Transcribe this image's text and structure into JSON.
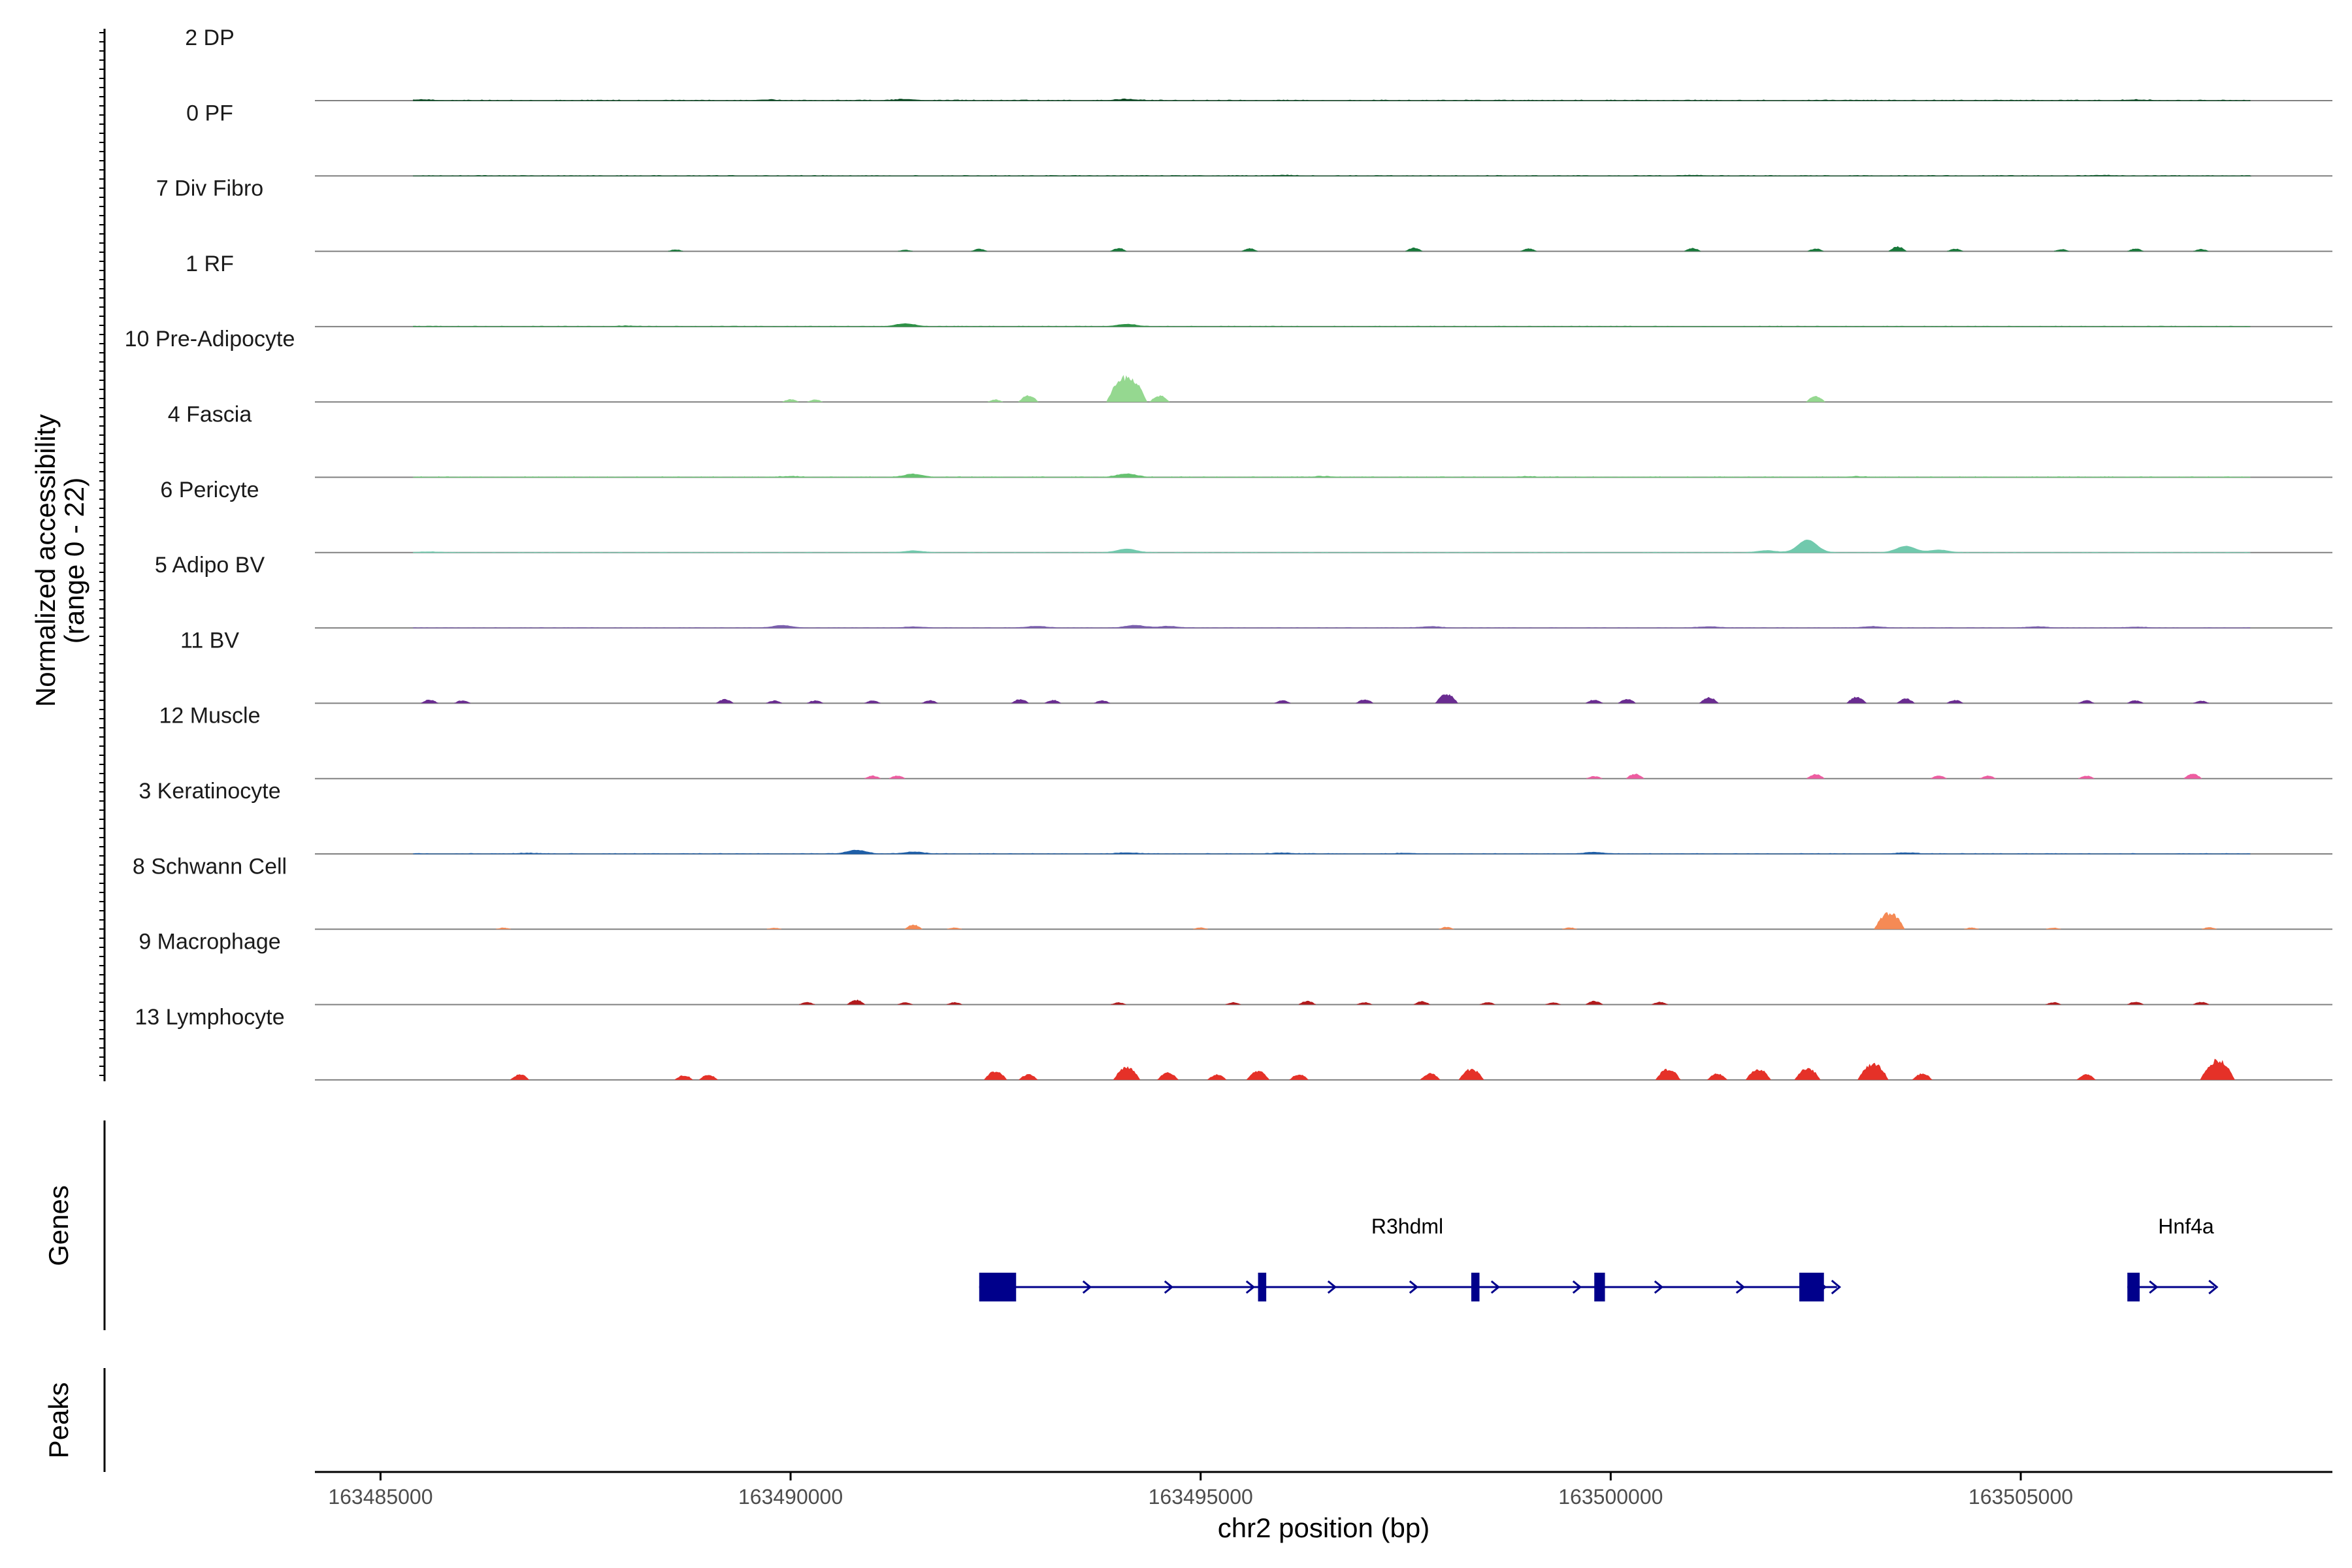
{
  "chart_data": {
    "type": "area",
    "chromosome": "chr2",
    "xlabel": "chr2 position (bp)",
    "xlim": [
      163484200,
      163508800
    ],
    "xticks": [
      163485000,
      163490000,
      163495000,
      163500000,
      163505000
    ],
    "tick_labels": [
      "163485000",
      "163490000",
      "163495000",
      "163500000",
      "163505000"
    ],
    "ylabel_line1": "Normalized accessibility",
    "ylabel_line2": "(range 0 - 22)",
    "ylim": [
      0,
      22
    ],
    "tracks": [
      {
        "name": "2 DP",
        "color": "#00441b",
        "style": "dense",
        "base": 0.35,
        "peaks": [
          [
            163491400,
            0.9
          ],
          [
            163494100,
            0.9
          ],
          [
            163485500,
            0.6
          ],
          [
            163489700,
            0.5
          ],
          [
            163506400,
            0.5
          ]
        ]
      },
      {
        "name": "0 PF",
        "color": "#0c5a2a",
        "style": "dense",
        "base": 0.3,
        "peaks": [
          [
            163496000,
            0.4
          ],
          [
            163501000,
            0.4
          ],
          [
            163506000,
            0.4
          ]
        ]
      },
      {
        "name": "7 Div Fibro",
        "color": "#17793a",
        "style": "sparse",
        "peaks": [
          [
            163488600,
            1.0
          ],
          [
            163491400,
            0.8
          ],
          [
            163492300,
            1.4
          ],
          [
            163494000,
            1.8
          ],
          [
            163495600,
            1.6
          ],
          [
            163497600,
            2.0
          ],
          [
            163499000,
            1.6
          ],
          [
            163501000,
            1.8
          ],
          [
            163502500,
            1.5
          ],
          [
            163503500,
            2.6
          ],
          [
            163504200,
            1.5
          ],
          [
            163505500,
            1.2
          ],
          [
            163506400,
            1.5
          ],
          [
            163507200,
            1.2
          ]
        ]
      },
      {
        "name": "1 RF",
        "color": "#2e9146",
        "style": "dense",
        "base": 0.25,
        "peaks": [
          [
            163491400,
            2.2
          ],
          [
            163494100,
            1.8
          ],
          [
            163488000,
            0.4
          ]
        ]
      },
      {
        "name": "10 Pre-Adipocyte",
        "color": "#95d890",
        "style": "sparse",
        "peaks": [
          [
            163490000,
            1.5
          ],
          [
            163490300,
            1.3
          ],
          [
            163492500,
            1.3
          ],
          [
            163492900,
            3.5
          ],
          [
            163494100,
            14.0
          ],
          [
            163494500,
            3.5
          ],
          [
            163502500,
            3.0
          ]
        ]
      },
      {
        "name": "4 Fascia",
        "color": "#66c170",
        "style": "dense",
        "base": 0.3,
        "peaks": [
          [
            163491500,
            2.3
          ],
          [
            163494100,
            2.6
          ],
          [
            163490000,
            0.5
          ],
          [
            163496500,
            0.5
          ],
          [
            163499000,
            0.4
          ],
          [
            163503000,
            0.4
          ]
        ]
      },
      {
        "name": "6 Pericyte",
        "color": "#71c9ad",
        "style": "dense",
        "base": 0.15,
        "peaks": [
          [
            163485600,
            0.5
          ],
          [
            163491500,
            1.3
          ],
          [
            163494100,
            2.8
          ],
          [
            163502400,
            10.0
          ],
          [
            163501900,
            1.5
          ],
          [
            163503600,
            5.0
          ],
          [
            163504000,
            2.0
          ]
        ]
      },
      {
        "name": "5 Adipo BV",
        "color": "#7a5fad",
        "style": "dense",
        "base": 0.2,
        "peaks": [
          [
            163489900,
            1.8
          ],
          [
            163491500,
            0.8
          ],
          [
            163493000,
            1.2
          ],
          [
            163494200,
            2.0
          ],
          [
            163494600,
            1.2
          ],
          [
            163497800,
            1.0
          ],
          [
            163501200,
            0.9
          ],
          [
            163503200,
            1.0
          ],
          [
            163505200,
            0.9
          ],
          [
            163506400,
            0.6
          ]
        ]
      },
      {
        "name": "11 BV",
        "color": "#6a2c91",
        "style": "sparse",
        "peaks": [
          [
            163485600,
            2.0
          ],
          [
            163486000,
            1.6
          ],
          [
            163489200,
            2.2
          ],
          [
            163489800,
            1.5
          ],
          [
            163490300,
            1.6
          ],
          [
            163491000,
            1.5
          ],
          [
            163491700,
            1.7
          ],
          [
            163492800,
            2.3
          ],
          [
            163493200,
            1.8
          ],
          [
            163493800,
            1.6
          ],
          [
            163496000,
            1.6
          ],
          [
            163497000,
            2.2
          ],
          [
            163498000,
            5.0
          ],
          [
            163499800,
            2.0
          ],
          [
            163500200,
            2.4
          ],
          [
            163501200,
            3.2
          ],
          [
            163503000,
            3.5
          ],
          [
            163503600,
            2.5
          ],
          [
            163504200,
            1.8
          ],
          [
            163505800,
            1.6
          ],
          [
            163506400,
            1.7
          ],
          [
            163507200,
            1.4
          ]
        ]
      },
      {
        "name": "12 Muscle",
        "color": "#ee5da1",
        "style": "sparse",
        "peaks": [
          [
            163491000,
            1.6
          ],
          [
            163491300,
            1.6
          ],
          [
            163499800,
            1.4
          ],
          [
            163500300,
            2.6
          ],
          [
            163502500,
            2.5
          ],
          [
            163504000,
            1.6
          ],
          [
            163504600,
            1.6
          ],
          [
            163505800,
            1.6
          ],
          [
            163507100,
            2.6
          ]
        ]
      },
      {
        "name": "3 Keratinocyte",
        "color": "#1f5fa8",
        "style": "dense",
        "base": 0.25,
        "peaks": [
          [
            163490800,
            2.8
          ],
          [
            163491500,
            1.4
          ],
          [
            163494100,
            0.8
          ],
          [
            163496000,
            0.6
          ],
          [
            163497500,
            0.5
          ],
          [
            163499800,
            1.1
          ],
          [
            163503600,
            0.8
          ],
          [
            163486800,
            0.5
          ]
        ]
      },
      {
        "name": "8 Schwann Cell",
        "color": "#f58a55",
        "style": "sparse",
        "peaks": [
          [
            163486500,
            0.9
          ],
          [
            163489800,
            0.8
          ],
          [
            163491500,
            2.5
          ],
          [
            163492000,
            1.0
          ],
          [
            163495000,
            1.0
          ],
          [
            163498000,
            1.3
          ],
          [
            163499500,
            1.0
          ],
          [
            163503400,
            9.0
          ],
          [
            163504400,
            0.9
          ],
          [
            163505400,
            0.9
          ],
          [
            163507300,
            1.1
          ]
        ]
      },
      {
        "name": "9 Macrophage",
        "color": "#b21a1c",
        "style": "sparse",
        "peaks": [
          [
            163490200,
            1.4
          ],
          [
            163490800,
            2.6
          ],
          [
            163491400,
            1.2
          ],
          [
            163492000,
            1.3
          ],
          [
            163494000,
            1.2
          ],
          [
            163495400,
            1.3
          ],
          [
            163496300,
            2.0
          ],
          [
            163497000,
            1.3
          ],
          [
            163497700,
            1.8
          ],
          [
            163498500,
            1.3
          ],
          [
            163499300,
            1.2
          ],
          [
            163499800,
            2.0
          ],
          [
            163500600,
            1.5
          ],
          [
            163505400,
            1.3
          ],
          [
            163506400,
            1.6
          ],
          [
            163507200,
            1.5
          ]
        ]
      },
      {
        "name": "13 Lymphocyte",
        "color": "#e53128",
        "style": "sparse",
        "peaks": [
          [
            163486700,
            3.0
          ],
          [
            163488700,
            2.6
          ],
          [
            163489000,
            2.8
          ],
          [
            163492500,
            5.0
          ],
          [
            163492900,
            3.0
          ],
          [
            163494100,
            7.0
          ],
          [
            163494600,
            4.0
          ],
          [
            163495200,
            3.0
          ],
          [
            163495700,
            5.0
          ],
          [
            163496200,
            3.0
          ],
          [
            163497800,
            3.5
          ],
          [
            163498300,
            6.0
          ],
          [
            163500700,
            6.0
          ],
          [
            163501300,
            3.5
          ],
          [
            163501800,
            6.0
          ],
          [
            163502400,
            6.5
          ],
          [
            163503200,
            9.0
          ],
          [
            163503800,
            3.5
          ],
          [
            163505800,
            3.0
          ],
          [
            163507400,
            11.0
          ]
        ]
      }
    ],
    "genes_title": "Genes",
    "genes": [
      {
        "name": "R3hdml",
        "start": 163492300,
        "end": 163502600,
        "strand": "+",
        "exons": [
          [
            163492300,
            163492750
          ],
          [
            163495700,
            163495800
          ],
          [
            163498300,
            163498400
          ],
          [
            163499800,
            163499930
          ],
          [
            163502300,
            163502600
          ]
        ]
      },
      {
        "name": "Hnf4a",
        "start": 163506300,
        "end": 163507200,
        "strand": "+",
        "exons": [
          [
            163506300,
            163506450
          ]
        ]
      }
    ],
    "peaks_title": "Peaks",
    "colors": {
      "gene": "#00008b",
      "baseline": "#808080",
      "axis": "#000000"
    }
  }
}
